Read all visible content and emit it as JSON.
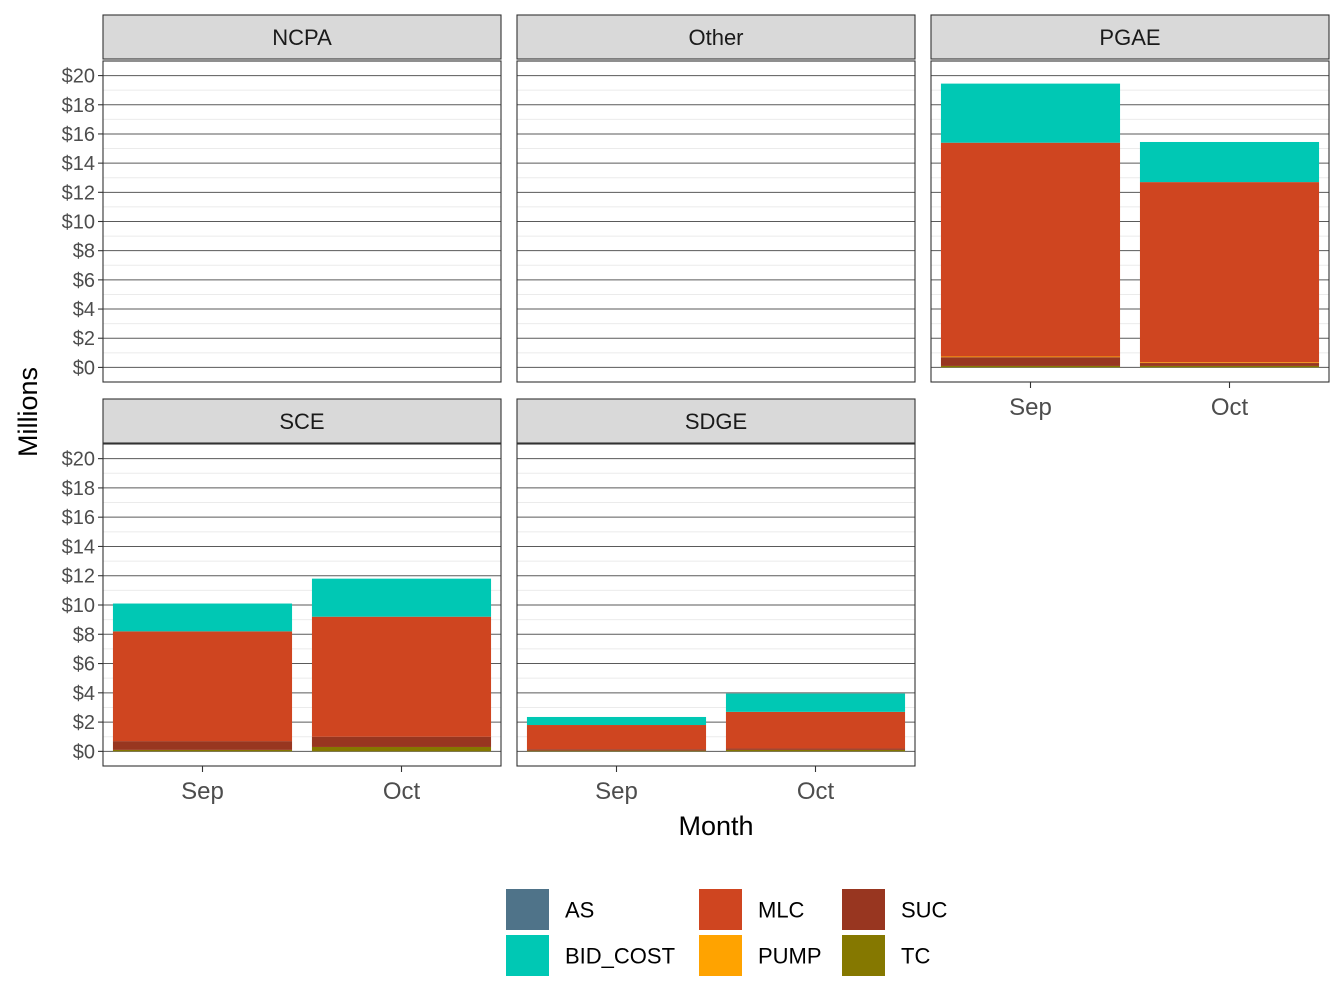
{
  "chart_data": {
    "type": "bar",
    "stacked": true,
    "faceted": true,
    "xlabel": "Month",
    "ylabel": "Millions",
    "ylim": [
      -1,
      21
    ],
    "y_ticks": [
      0,
      2,
      4,
      6,
      8,
      10,
      12,
      14,
      16,
      18,
      20
    ],
    "y_tick_labels": [
      "$0",
      "$2",
      "$4",
      "$6",
      "$8",
      "$10",
      "$12",
      "$14",
      "$16",
      "$18",
      "$20"
    ],
    "categories": [
      "Sep",
      "Oct"
    ],
    "grid": true,
    "legend_position": "bottom",
    "legend": [
      {
        "key": "AS",
        "label": "AS",
        "color": "#4f7389"
      },
      {
        "key": "BID_COST",
        "label": "BID_COST",
        "color": "#00c8b4"
      },
      {
        "key": "MLC",
        "label": "MLC",
        "color": "#cf4520"
      },
      {
        "key": "PUMP",
        "label": "PUMP",
        "color": "#ffa300"
      },
      {
        "key": "SUC",
        "label": "SUC",
        "color": "#983620"
      },
      {
        "key": "TC",
        "label": "TC",
        "color": "#857800"
      }
    ],
    "stack_order": [
      "TC",
      "SUC",
      "PUMP",
      "MLC",
      "BID_COST",
      "AS"
    ],
    "panels": [
      {
        "name": "NCPA",
        "show_y_axis": true,
        "show_x_axis": false,
        "values": {
          "Sep": {},
          "Oct": {}
        }
      },
      {
        "name": "Other",
        "show_y_axis": false,
        "show_x_axis": false,
        "values": {
          "Sep": {},
          "Oct": {}
        }
      },
      {
        "name": "PGAE",
        "show_y_axis": false,
        "show_x_axis": true,
        "values": {
          "Sep": {
            "TC": 0.1,
            "SUC": 0.6,
            "PUMP": 0.05,
            "MLC": 14.65,
            "BID_COST": 4.05,
            "AS": 0
          },
          "Oct": {
            "TC": 0.1,
            "SUC": 0.2,
            "PUMP": 0.05,
            "MLC": 12.35,
            "BID_COST": 2.75,
            "AS": 0
          }
        }
      },
      {
        "name": "SCE",
        "show_y_axis": true,
        "show_x_axis": true,
        "values": {
          "Sep": {
            "TC": 0.1,
            "SUC": 0.6,
            "PUMP": 0,
            "MLC": 7.5,
            "BID_COST": 1.9,
            "AS": 0
          },
          "Oct": {
            "TC": 0.3,
            "SUC": 0.7,
            "PUMP": 0,
            "MLC": 8.2,
            "BID_COST": 2.6,
            "AS": 0
          }
        }
      },
      {
        "name": "SDGE",
        "show_y_axis": false,
        "show_x_axis": true,
        "values": {
          "Sep": {
            "TC": 0.05,
            "SUC": 0.1,
            "PUMP": 0,
            "MLC": 1.65,
            "BID_COST": 0.55,
            "AS": 0
          },
          "Oct": {
            "TC": 0.1,
            "SUC": 0.1,
            "PUMP": 0,
            "MLC": 2.5,
            "BID_COST": 1.25,
            "AS": 0
          }
        }
      }
    ]
  }
}
